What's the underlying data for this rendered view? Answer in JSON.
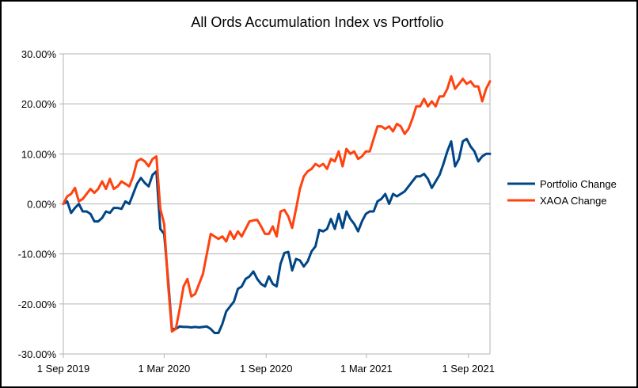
{
  "chart_data": {
    "type": "line",
    "title": "All Ords Accumulation Index vs Portfolio",
    "xlabel": "",
    "ylabel": "",
    "x_tick_labels": [
      "1 Sep 2019",
      "1 Mar 2020",
      "1 Sep 2020",
      "1 Mar 2021",
      "1 Sep 2021"
    ],
    "x_range": [
      "2019-09-01",
      "2021-10-10"
    ],
    "ylim": [
      -30,
      30
    ],
    "y_ticks": [
      30,
      20,
      10,
      0,
      -10,
      -20,
      -30
    ],
    "y_tick_labels": [
      "30.00%",
      "20.00%",
      "10.00%",
      "0.00%",
      "-10.00%",
      "-20.00%",
      "-30.00%"
    ],
    "grid": true,
    "legend_position": "right",
    "series": [
      {
        "name": "Portfolio Change",
        "color": "#004586",
        "x": [
          "2019-09-01",
          "2019-09-08",
          "2019-09-15",
          "2019-09-22",
          "2019-09-29",
          "2019-10-06",
          "2019-10-13",
          "2019-10-20",
          "2019-10-27",
          "2019-11-03",
          "2019-11-10",
          "2019-11-17",
          "2019-11-24",
          "2019-12-01",
          "2019-12-08",
          "2019-12-15",
          "2019-12-22",
          "2019-12-29",
          "2020-01-05",
          "2020-01-12",
          "2020-01-19",
          "2020-01-26",
          "2020-02-02",
          "2020-02-09",
          "2020-02-16",
          "2020-02-23",
          "2020-03-01",
          "2020-03-08",
          "2020-03-15",
          "2020-03-22",
          "2020-03-29",
          "2020-04-05",
          "2020-04-12",
          "2020-04-19",
          "2020-04-26",
          "2020-05-03",
          "2020-05-10",
          "2020-05-17",
          "2020-05-24",
          "2020-05-31",
          "2020-06-07",
          "2020-06-14",
          "2020-06-21",
          "2020-06-28",
          "2020-07-05",
          "2020-07-12",
          "2020-07-19",
          "2020-07-26",
          "2020-08-02",
          "2020-08-09",
          "2020-08-16",
          "2020-08-23",
          "2020-08-30",
          "2020-09-06",
          "2020-09-13",
          "2020-09-20",
          "2020-09-27",
          "2020-10-04",
          "2020-10-11",
          "2020-10-18",
          "2020-10-25",
          "2020-11-01",
          "2020-11-08",
          "2020-11-15",
          "2020-11-22",
          "2020-11-29",
          "2020-12-06",
          "2020-12-13",
          "2020-12-20",
          "2020-12-27",
          "2021-01-03",
          "2021-01-10",
          "2021-01-17",
          "2021-01-24",
          "2021-01-31",
          "2021-02-07",
          "2021-02-14",
          "2021-02-21",
          "2021-02-28",
          "2021-03-07",
          "2021-03-14",
          "2021-03-21",
          "2021-03-28",
          "2021-04-04",
          "2021-04-11",
          "2021-04-18",
          "2021-04-25",
          "2021-05-02",
          "2021-05-09",
          "2021-05-16",
          "2021-05-23",
          "2021-05-30",
          "2021-06-06",
          "2021-06-13",
          "2021-06-20",
          "2021-06-27",
          "2021-07-04",
          "2021-07-11",
          "2021-07-18",
          "2021-07-25",
          "2021-08-01",
          "2021-08-08",
          "2021-08-15",
          "2021-08-22",
          "2021-08-29",
          "2021-09-05",
          "2021-09-12",
          "2021-09-19",
          "2021-09-26",
          "2021-10-03",
          "2021-10-10"
        ],
        "values": [
          0,
          0.5,
          -1.8,
          -0.8,
          0,
          -1.5,
          -1.5,
          -2,
          -3.5,
          -3.5,
          -2.8,
          -1.5,
          -1.8,
          -0.8,
          -0.8,
          -1,
          0.5,
          0,
          2,
          4,
          5.2,
          4.2,
          3.5,
          5.8,
          6.5,
          -5,
          -6,
          -15,
          -25,
          -25,
          -24.5,
          -24.6,
          -24.6,
          -24.7,
          -24.6,
          -24.7,
          -24.6,
          -24.5,
          -25,
          -25.8,
          -25.8,
          -24,
          -21.5,
          -20.5,
          -19.5,
          -17,
          -16.5,
          -15,
          -14.5,
          -13.5,
          -15,
          -16,
          -16.5,
          -14.5,
          -16,
          -16.5,
          -12,
          -9.8,
          -9.6,
          -13.3,
          -11,
          -11.3,
          -12.5,
          -11.5,
          -9.5,
          -8.5,
          -5.2,
          -5.5,
          -5,
          -3,
          -5,
          -2,
          -4.8,
          -1.5,
          -3,
          -4,
          -5.5,
          -3.5,
          -2,
          -1.5,
          -1.5,
          0.5,
          1,
          2,
          0,
          2,
          1.5,
          2,
          2.5,
          3.5,
          4.5,
          5.5,
          5.5,
          6,
          5,
          3.2,
          4.5,
          5.8,
          8,
          10.5,
          12.5,
          7.5,
          9,
          12.5,
          13,
          11.5,
          10.5,
          8.5,
          9.5,
          10,
          10
        ]
      },
      {
        "name": "XAOA Change",
        "color": "#ff420e",
        "x": [
          "2019-09-01",
          "2019-09-08",
          "2019-09-15",
          "2019-09-22",
          "2019-09-29",
          "2019-10-06",
          "2019-10-13",
          "2019-10-20",
          "2019-10-27",
          "2019-11-03",
          "2019-11-10",
          "2019-11-17",
          "2019-11-24",
          "2019-12-01",
          "2019-12-08",
          "2019-12-15",
          "2019-12-22",
          "2019-12-29",
          "2020-01-05",
          "2020-01-12",
          "2020-01-19",
          "2020-01-26",
          "2020-02-02",
          "2020-02-09",
          "2020-02-16",
          "2020-02-23",
          "2020-03-01",
          "2020-03-08",
          "2020-03-15",
          "2020-03-22",
          "2020-03-29",
          "2020-04-05",
          "2020-04-12",
          "2020-04-19",
          "2020-04-26",
          "2020-05-03",
          "2020-05-10",
          "2020-05-17",
          "2020-05-24",
          "2020-05-31",
          "2020-06-07",
          "2020-06-14",
          "2020-06-21",
          "2020-06-28",
          "2020-07-05",
          "2020-07-12",
          "2020-07-19",
          "2020-07-26",
          "2020-08-02",
          "2020-08-09",
          "2020-08-16",
          "2020-08-23",
          "2020-08-30",
          "2020-09-06",
          "2020-09-13",
          "2020-09-20",
          "2020-09-27",
          "2020-10-04",
          "2020-10-11",
          "2020-10-18",
          "2020-10-25",
          "2020-11-01",
          "2020-11-08",
          "2020-11-15",
          "2020-11-22",
          "2020-11-29",
          "2020-12-06",
          "2020-12-13",
          "2020-12-20",
          "2020-12-27",
          "2021-01-03",
          "2021-01-10",
          "2021-01-17",
          "2021-01-24",
          "2021-01-31",
          "2021-02-07",
          "2021-02-14",
          "2021-02-21",
          "2021-02-28",
          "2021-03-07",
          "2021-03-14",
          "2021-03-21",
          "2021-03-28",
          "2021-04-04",
          "2021-04-11",
          "2021-04-18",
          "2021-04-25",
          "2021-05-02",
          "2021-05-09",
          "2021-05-16",
          "2021-05-23",
          "2021-05-30",
          "2021-06-06",
          "2021-06-13",
          "2021-06-20",
          "2021-06-27",
          "2021-07-04",
          "2021-07-11",
          "2021-07-18",
          "2021-07-25",
          "2021-08-01",
          "2021-08-08",
          "2021-08-15",
          "2021-08-22",
          "2021-08-29",
          "2021-09-05",
          "2021-09-12",
          "2021-09-19",
          "2021-09-26",
          "2021-10-03",
          "2021-10-10"
        ],
        "values": [
          0,
          1.5,
          2,
          3.2,
          0.5,
          1,
          2,
          3,
          2.2,
          3,
          4.5,
          3,
          5,
          3,
          3.5,
          4.5,
          4,
          3.5,
          5.5,
          8.5,
          9,
          8.5,
          7.5,
          9,
          9.5,
          -1,
          -4,
          -16,
          -25.5,
          -25,
          -21,
          -16.5,
          -15,
          -18.5,
          -18,
          -16,
          -14,
          -10,
          -6,
          -6.5,
          -7,
          -6.5,
          -7.5,
          -5.5,
          -7,
          -5.5,
          -6.5,
          -5,
          -3.5,
          -3.3,
          -3.2,
          -4.5,
          -6,
          -6,
          -4.5,
          -6.5,
          -1.5,
          -1.2,
          -2.5,
          -4.8,
          -1,
          3,
          5.5,
          6.5,
          7,
          8,
          7.5,
          8,
          7,
          9,
          8.5,
          10.5,
          7.5,
          11,
          10,
          10.5,
          9,
          9.5,
          10.5,
          10.5,
          13,
          15.5,
          15.5,
          15,
          15.5,
          14.5,
          16,
          15.5,
          14,
          15,
          17,
          19.5,
          19.5,
          21,
          19.5,
          20.5,
          19.5,
          21.5,
          21.5,
          23,
          25.5,
          23,
          24,
          25,
          24,
          24.5,
          23.5,
          23.5,
          20.5,
          23,
          24.5
        ]
      }
    ]
  }
}
